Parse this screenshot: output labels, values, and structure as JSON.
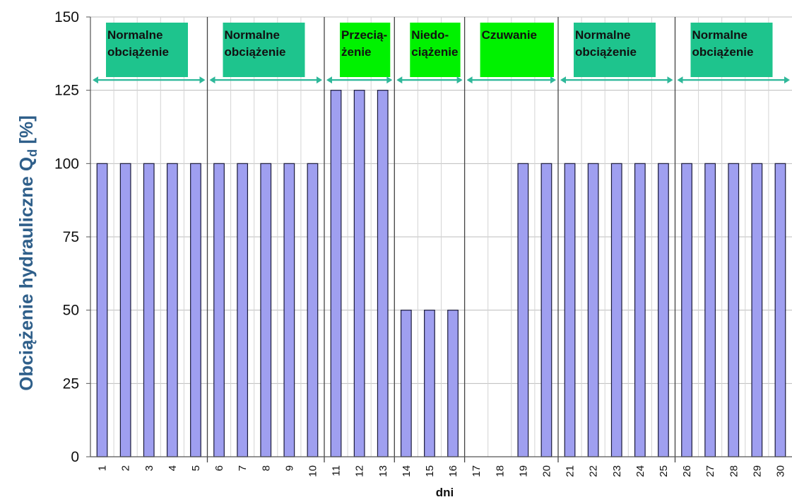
{
  "chart_data": {
    "type": "bar",
    "title": "",
    "xlabel": "dni",
    "ylabel": "Obciążenie hydrauliczne Q",
    "ylabel_sub": "d",
    "ylabel_unit": " [%]",
    "ylim": [
      0,
      150
    ],
    "yticks": [
      0,
      25,
      50,
      75,
      100,
      125,
      150
    ],
    "grid": true,
    "categories": [
      "1",
      "2",
      "3",
      "4",
      "5",
      "6",
      "7",
      "8",
      "9",
      "10",
      "11",
      "12",
      "13",
      "14",
      "15",
      "16",
      "17",
      "18",
      "19",
      "20",
      "21",
      "22",
      "23",
      "24",
      "25",
      "26",
      "27",
      "28",
      "29",
      "30"
    ],
    "values": [
      100,
      100,
      100,
      100,
      100,
      100,
      100,
      100,
      100,
      100,
      125,
      125,
      125,
      50,
      50,
      50,
      0,
      0,
      100,
      100,
      100,
      100,
      100,
      100,
      100,
      100,
      100,
      100,
      100,
      100
    ],
    "colors": {
      "bar": "#9f9ff0",
      "bar_edge": "#1a1a3a",
      "normal_phase": "#1ec48d",
      "other_phase": "#00f200",
      "arrow": "#2fb89a"
    },
    "phases": [
      {
        "lines": [
          "Normalne",
          "obciążenie"
        ],
        "start": 1,
        "end": 5,
        "color": "#1ec48d"
      },
      {
        "lines": [
          "Normalne",
          "obciążenie"
        ],
        "start": 6,
        "end": 10,
        "color": "#1ec48d"
      },
      {
        "lines": [
          "Przecią-",
          "żenie"
        ],
        "start": 11,
        "end": 13,
        "color": "#00f200"
      },
      {
        "lines": [
          "Niedo-",
          "ciążenie"
        ],
        "start": 14,
        "end": 16,
        "color": "#00f200"
      },
      {
        "lines": [
          "Czuwanie"
        ],
        "start": 17,
        "end": 20,
        "color": "#00f200"
      },
      {
        "lines": [
          "Normalne",
          "obciążenie"
        ],
        "start": 21,
        "end": 25,
        "color": "#1ec48d"
      },
      {
        "lines": [
          "Normalne",
          "obciążenie"
        ],
        "start": 26,
        "end": 30,
        "color": "#1ec48d"
      }
    ]
  }
}
